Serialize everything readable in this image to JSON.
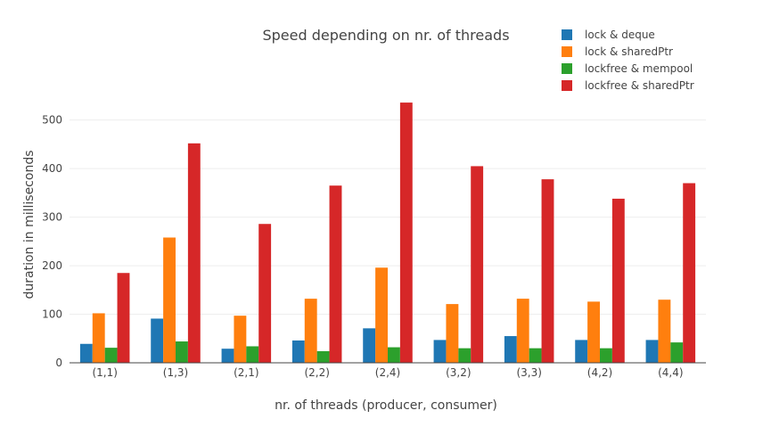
{
  "chart_data": {
    "type": "bar",
    "title": "Speed depending on nr. of threads",
    "xlabel": "nr. of threads (producer, consumer)",
    "ylabel": "duration in milliseconds",
    "categories": [
      "(1,1)",
      "(1,3)",
      "(2,1)",
      "(2,2)",
      "(2,4)",
      "(3,2)",
      "(3,3)",
      "(4,2)",
      "(4,4)"
    ],
    "ylim": [
      0,
      560
    ],
    "yticks": [
      0,
      100,
      200,
      300,
      400,
      500
    ],
    "grid": true,
    "legend_position": "top-right",
    "series": [
      {
        "name": "lock & deque",
        "color": "#1f77b4",
        "values": [
          39,
          91,
          29,
          46,
          71,
          47,
          55,
          47,
          47
        ]
      },
      {
        "name": "lock & sharedPtr",
        "color": "#ff7f0e",
        "values": [
          102,
          258,
          97,
          132,
          196,
          121,
          132,
          126,
          130
        ]
      },
      {
        "name": "lockfree & mempool",
        "color": "#2ca02c",
        "values": [
          31,
          44,
          34,
          24,
          32,
          30,
          30,
          30,
          42
        ]
      },
      {
        "name": "lockfree & sharedPtr",
        "color": "#d62728",
        "values": [
          185,
          452,
          286,
          365,
          536,
          405,
          378,
          338,
          370
        ]
      }
    ]
  }
}
